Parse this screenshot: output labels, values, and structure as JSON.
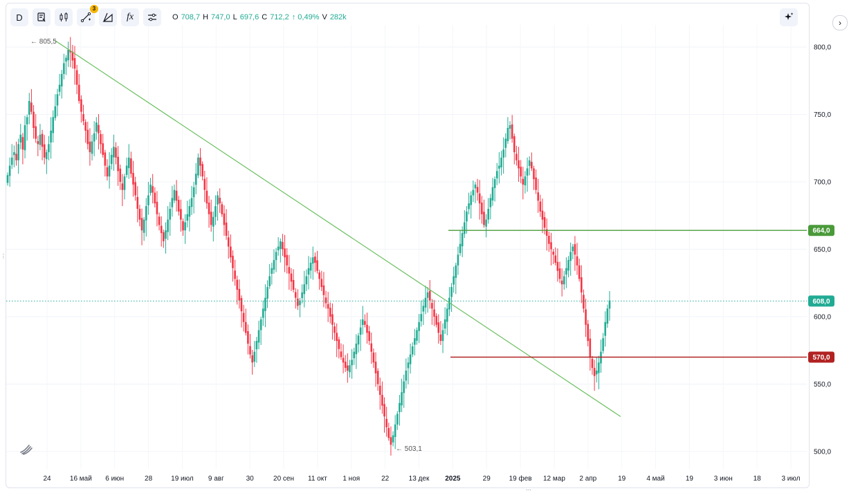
{
  "toolbar": {
    "interval": "D",
    "drawings_badge": "3",
    "formula_icon_label": "fx",
    "ohlc": [
      {
        "key": "O",
        "value": "708,7"
      },
      {
        "key": "H",
        "value": "747,0"
      },
      {
        "key": "L",
        "value": "697,6"
      },
      {
        "key": "C",
        "value": "712,2"
      },
      {
        "key": "",
        "value": "↑ 0,49%"
      },
      {
        "key": "V",
        "value": "282k"
      }
    ],
    "up_color": "#22ab94",
    "down_color": "#f23645"
  },
  "chart_data": {
    "type": "candlestick",
    "y_axis": {
      "ticks": [
        "500,0",
        "550,0",
        "600,0",
        "650,0",
        "700,0",
        "750,0",
        "800,0"
      ],
      "ylim": [
        492,
        826
      ]
    },
    "x_axis": {
      "ticks": [
        "24",
        "16 май",
        "6 июн",
        "28",
        "19 июл",
        "9 авг",
        "30",
        "20 сен",
        "11 окт",
        "1 ноя",
        "22",
        "13 дек",
        "2025",
        "29",
        "19 фев",
        "12 мар",
        "2 апр",
        "19",
        "4 май",
        "19",
        "3 июн",
        "18",
        "3 июл"
      ]
    },
    "grid": true,
    "price_line": {
      "value": 608.0,
      "label": "608,0",
      "color": "#22ab94"
    },
    "horizontal_levels": [
      {
        "value": 664.0,
        "label": "664,0",
        "color": "#4a9a3a"
      },
      {
        "value": 570.0,
        "label": "570,0",
        "color": "#b22222"
      }
    ],
    "trend_line": {
      "from_value": 805.5,
      "to_value": 530.0,
      "color": "#6abf5e"
    },
    "annotations": [
      {
        "label": "← 805,5",
        "value": 805.5
      },
      {
        "label": "← 503,1",
        "value": 503.1
      }
    ],
    "closes": [
      705,
      712,
      718,
      722,
      716,
      728,
      735,
      724,
      742,
      748,
      760,
      752,
      740,
      732,
      728,
      735,
      726,
      718,
      722,
      728,
      738,
      748,
      756,
      765,
      772,
      780,
      788,
      792,
      798,
      796,
      790,
      784,
      772,
      760,
      752,
      745,
      738,
      728,
      722,
      730,
      736,
      744,
      736,
      728,
      720,
      712,
      704,
      712,
      720,
      726,
      718,
      708,
      700,
      694,
      704,
      712,
      718,
      706,
      698,
      690,
      680,
      672,
      664,
      672,
      682,
      690,
      698,
      692,
      684,
      676,
      668,
      662,
      656,
      664,
      672,
      680,
      688,
      694,
      686,
      678,
      672,
      664,
      670,
      676,
      682,
      688,
      696,
      706,
      718,
      712,
      704,
      694,
      684,
      676,
      668,
      674,
      682,
      690,
      684,
      676,
      668,
      660,
      652,
      644,
      636,
      628,
      620,
      612,
      604,
      596,
      588,
      580,
      572,
      566,
      574,
      582,
      590,
      598,
      606,
      614,
      622,
      630,
      636,
      642,
      648,
      652,
      656,
      650,
      644,
      638,
      632,
      626,
      620,
      614,
      608,
      612,
      618,
      624,
      630,
      636,
      640,
      644,
      640,
      634,
      628,
      622,
      616,
      610,
      606,
      600,
      594,
      588,
      582,
      576,
      570,
      566,
      562,
      560,
      564,
      568,
      574,
      580,
      586,
      592,
      598,
      594,
      588,
      582,
      574,
      566,
      558,
      550,
      542,
      534,
      526,
      518,
      510,
      505,
      512,
      520,
      528,
      536,
      544,
      552,
      560,
      566,
      572,
      578,
      584,
      590,
      596,
      602,
      608,
      614,
      618,
      612,
      606,
      600,
      594,
      588,
      582,
      590,
      598,
      606,
      614,
      622,
      630,
      638,
      646,
      654,
      662,
      670,
      678,
      684,
      690,
      694,
      698,
      692,
      684,
      676,
      668,
      672,
      680,
      688,
      696,
      702,
      708,
      712,
      718,
      724,
      732,
      740,
      742,
      732,
      722,
      716,
      710,
      704,
      698,
      704,
      710,
      716,
      710,
      702,
      694,
      686,
      678,
      672,
      666,
      660,
      654,
      650,
      646,
      640,
      634,
      628,
      624,
      630,
      636,
      642,
      648,
      652,
      646,
      638,
      628,
      618,
      606,
      594,
      582,
      570,
      562,
      556,
      560,
      566,
      574,
      584,
      596,
      606,
      612
    ]
  }
}
